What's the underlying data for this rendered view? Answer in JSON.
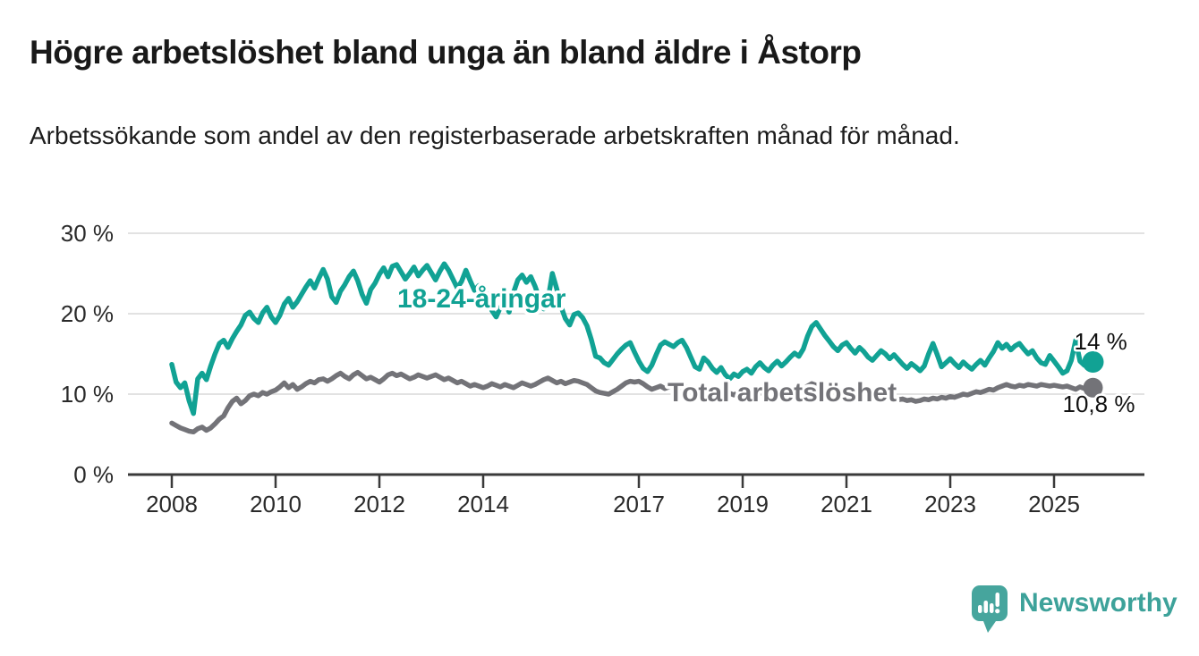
{
  "header": {
    "title": "Högre arbetslöshet bland unga än bland äldre i Åstorp",
    "subtitle": "Arbetssökande som andel av den registerbaserade arbetskraften månad för månad."
  },
  "footer": {
    "brand": "Newsworthy"
  },
  "colors": {
    "youth_line": "#11a294",
    "total_line": "#737378",
    "grid": "#d9d9d9",
    "axis": "#3a3a3a",
    "tick_text": "#2a2a2a",
    "annotation_text": "#111111",
    "logo_teal": "#46a59d"
  },
  "chart_data": {
    "type": "line",
    "title": "Högre arbetslöshet bland unga än bland äldre i Åstorp",
    "subtitle": "Arbetssökande som andel av den registerbaserade arbetskraften månad för månad.",
    "xlabel": "",
    "ylabel": "",
    "grid": "horizontal",
    "ylim": [
      0,
      32
    ],
    "y_tick_values": [
      0,
      10,
      20,
      30
    ],
    "y_tick_labels": [
      "0 %",
      "10 %",
      "20 %",
      "30 %"
    ],
    "x_tick_years": [
      2008,
      2010,
      2012,
      2014,
      2017,
      2019,
      2021,
      2023,
      2025
    ],
    "x_tick_labels": [
      "2008",
      "2010",
      "2012",
      "2014",
      "2017",
      "2019",
      "2021",
      "2023",
      "2025"
    ],
    "x_start": "2008-01",
    "x_end": "2025-10",
    "x_interval": "monthly",
    "legend_position": "inline-labels",
    "series": [
      {
        "name": "18-24-åringar",
        "color": "#11a294",
        "end_label": "14 %",
        "end_value": 14.0,
        "monthly_values": [
          13.7,
          11.5,
          10.8,
          11.4,
          9.2,
          7.6,
          11.9,
          12.6,
          11.8,
          13.5,
          15.0,
          16.3,
          16.7,
          15.8,
          16.9,
          17.8,
          18.6,
          19.8,
          20.2,
          19.4,
          18.9,
          20.1,
          20.8,
          19.6,
          18.9,
          19.8,
          21.2,
          21.9,
          20.8,
          21.5,
          22.4,
          23.3,
          24.1,
          23.2,
          24.4,
          25.5,
          24.3,
          22.1,
          21.4,
          22.8,
          23.6,
          24.6,
          25.3,
          24.1,
          22.4,
          21.3,
          23.0,
          23.8,
          24.9,
          25.7,
          24.6,
          25.9,
          26.1,
          25.2,
          24.3,
          25.0,
          25.8,
          24.7,
          25.4,
          26.0,
          25.1,
          24.2,
          25.3,
          26.2,
          25.4,
          24.3,
          23.2,
          24.0,
          25.4,
          24.1,
          22.9,
          23.5,
          23.3,
          22.1,
          20.4,
          19.6,
          20.8,
          21.5,
          20.2,
          22.6,
          24.2,
          24.8,
          23.9,
          24.6,
          23.4,
          21.9,
          20.6,
          21.8,
          25.0,
          23.1,
          20.9,
          19.4,
          18.6,
          19.9,
          20.1,
          19.5,
          18.5,
          16.8,
          14.7,
          14.5,
          13.9,
          13.6,
          14.3,
          15.0,
          15.6,
          16.1,
          16.4,
          15.2,
          14.1,
          13.2,
          12.8,
          13.6,
          14.9,
          16.1,
          16.5,
          16.2,
          15.9,
          16.4,
          16.7,
          15.8,
          14.6,
          13.4,
          13.1,
          14.5,
          14.0,
          13.2,
          12.7,
          13.3,
          12.4,
          11.9,
          12.5,
          12.2,
          12.8,
          13.1,
          12.6,
          13.4,
          13.9,
          13.3,
          12.9,
          13.6,
          14.1,
          13.5,
          14.0,
          14.6,
          15.1,
          14.7,
          15.6,
          17.2,
          18.4,
          18.9,
          18.1,
          17.3,
          16.6,
          15.9,
          15.4,
          16.1,
          16.4,
          15.7,
          15.1,
          15.8,
          15.3,
          14.6,
          14.2,
          14.8,
          15.4,
          15.0,
          14.4,
          14.9,
          14.3,
          13.7,
          13.2,
          13.8,
          13.4,
          12.9,
          13.5,
          15.0,
          16.3,
          14.9,
          13.4,
          13.9,
          14.4,
          13.8,
          13.3,
          14.0,
          13.5,
          13.1,
          13.7,
          14.2,
          13.6,
          14.5,
          15.3,
          16.4,
          15.7,
          16.2,
          15.5,
          16.0,
          16.3,
          15.6,
          15.0,
          15.4,
          14.5,
          13.9,
          13.7,
          14.8,
          14.1,
          13.4,
          12.6,
          12.9,
          14.2,
          16.7,
          14.1,
          13.6,
          13.9,
          14.0
        ]
      },
      {
        "name": "Total arbetslöshet",
        "color": "#737378",
        "end_label": "10,8 %",
        "end_value": 10.8,
        "monthly_values": [
          6.4,
          6.1,
          5.8,
          5.6,
          5.4,
          5.3,
          5.7,
          5.9,
          5.5,
          5.8,
          6.3,
          6.9,
          7.3,
          8.3,
          9.1,
          9.5,
          8.8,
          9.2,
          9.8,
          10.0,
          9.8,
          10.2,
          10.0,
          10.3,
          10.5,
          10.9,
          11.4,
          10.8,
          11.2,
          10.6,
          10.9,
          11.3,
          11.6,
          11.4,
          11.8,
          11.9,
          11.6,
          11.9,
          12.3,
          12.6,
          12.2,
          11.9,
          12.4,
          12.7,
          12.3,
          11.9,
          12.1,
          11.8,
          11.5,
          11.9,
          12.4,
          12.6,
          12.3,
          12.5,
          12.2,
          11.9,
          12.1,
          12.4,
          12.2,
          12.0,
          12.2,
          12.4,
          12.1,
          11.8,
          12.0,
          11.7,
          11.4,
          11.6,
          11.3,
          11.0,
          11.2,
          11.0,
          10.8,
          11.0,
          11.3,
          11.1,
          10.9,
          11.2,
          11.0,
          10.8,
          11.1,
          11.4,
          11.2,
          11.0,
          11.2,
          11.5,
          11.8,
          12.0,
          11.7,
          11.4,
          11.6,
          11.3,
          11.5,
          11.7,
          11.6,
          11.4,
          11.2,
          10.8,
          10.4,
          10.2,
          10.1,
          10.0,
          10.3,
          10.6,
          11.0,
          11.4,
          11.6,
          11.5,
          11.6,
          11.3,
          10.9,
          10.6,
          10.8,
          11.0,
          10.7,
          10.9,
          11.1,
          10.8,
          10.6,
          10.9,
          10.7,
          10.4,
          10.6,
          10.3,
          10.1,
          10.4,
          10.2,
          10.0,
          10.3,
          10.1,
          9.9,
          10.2,
          10.0,
          9.8,
          10.1,
          9.9,
          10.2,
          10.0,
          10.3,
          10.1,
          10.4,
          10.2,
          10.0,
          10.3,
          10.5,
          10.3,
          10.6,
          11.0,
          11.3,
          11.1,
          10.9,
          11.1,
          10.8,
          10.6,
          10.4,
          10.5,
          10.3,
          10.5,
          10.2,
          10.0,
          10.1,
          9.9,
          9.7,
          9.8,
          9.6,
          9.7,
          9.5,
          9.4,
          9.3,
          9.4,
          9.2,
          9.3,
          9.1,
          9.2,
          9.4,
          9.3,
          9.5,
          9.4,
          9.6,
          9.5,
          9.7,
          9.6,
          9.8,
          10.0,
          9.9,
          10.1,
          10.3,
          10.2,
          10.4,
          10.6,
          10.5,
          10.8,
          11.0,
          11.2,
          11.0,
          10.9,
          11.1,
          11.0,
          11.2,
          11.1,
          11.0,
          11.2,
          11.1,
          11.0,
          11.1,
          11.0,
          10.9,
          11.0,
          10.8,
          10.6,
          10.9,
          10.7,
          10.9,
          10.8
        ]
      }
    ],
    "series_inline_labels": [
      {
        "text": "18-24-åringar",
        "color": "#11a294"
      },
      {
        "text": "Total arbetslöshet",
        "color": "#737378"
      }
    ]
  }
}
